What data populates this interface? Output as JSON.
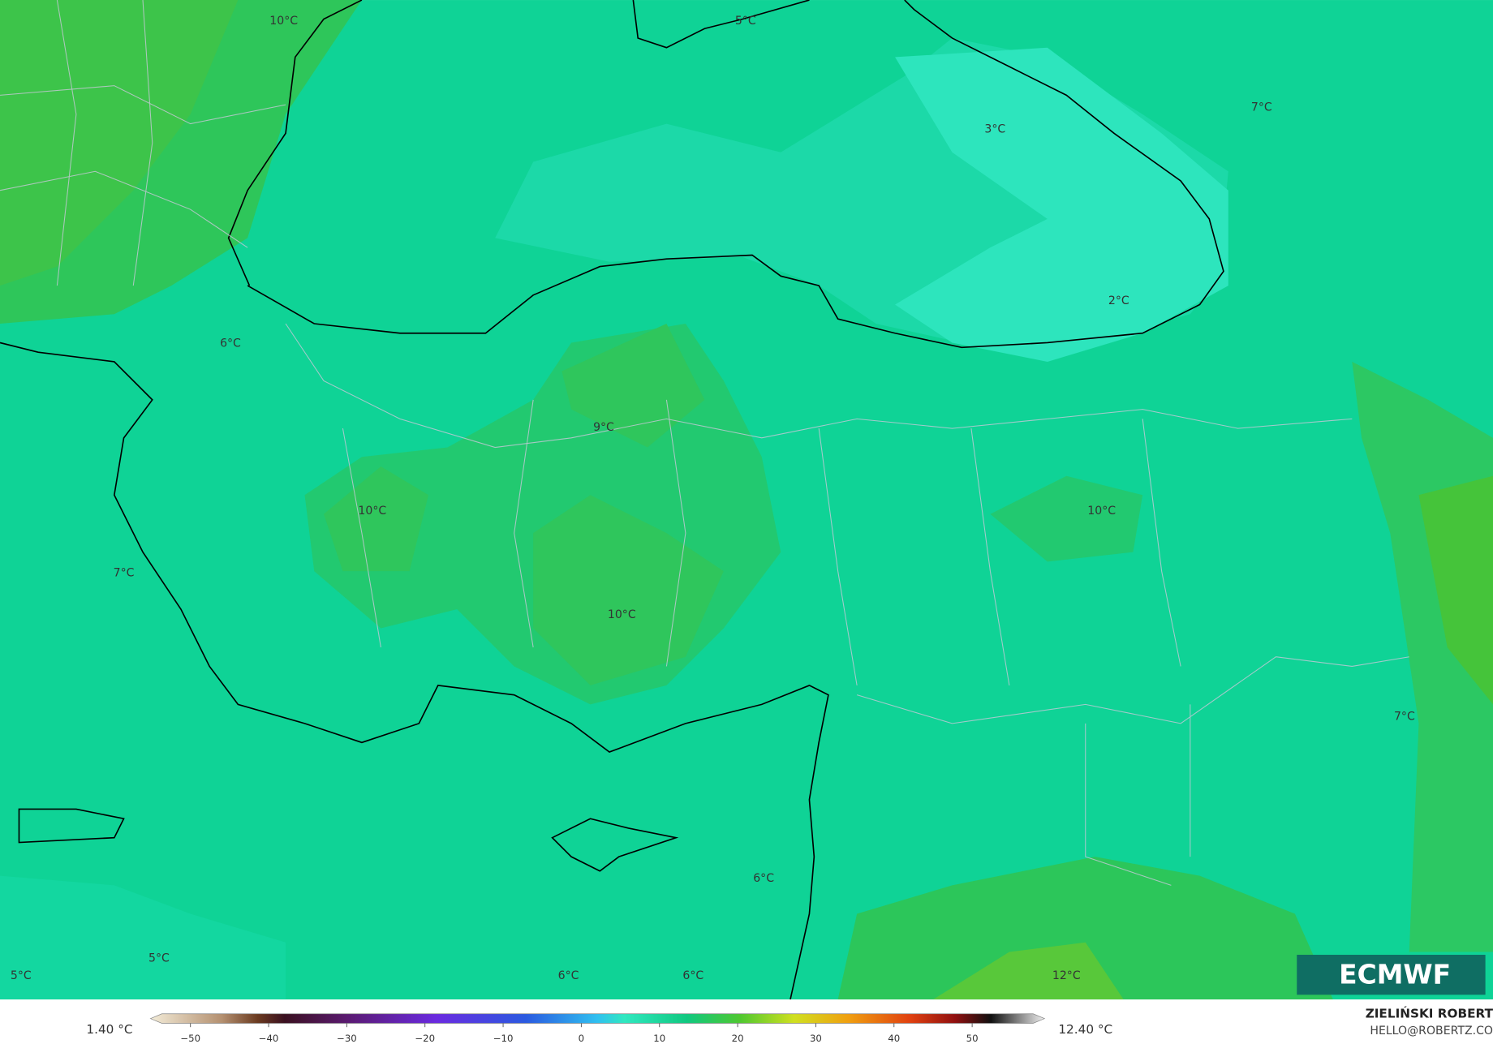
{
  "map_labels": [
    "10°C",
    "5°C",
    "3°C",
    "7°C",
    "2°C",
    "6°C",
    "9°C",
    "10°C",
    "10°C",
    "7°C",
    "10°C",
    "7°C",
    "6°C",
    "5°C",
    "5°C",
    "6°C",
    "6°C",
    "12°C"
  ],
  "colorbar": {
    "min_label": "1.40 °C",
    "max_label": "12.40 °C",
    "ticks": [
      {
        "value": -50,
        "label": "−50"
      },
      {
        "value": -40,
        "label": "−40"
      },
      {
        "value": -30,
        "label": "−30"
      },
      {
        "value": -20,
        "label": "−20"
      },
      {
        "value": -10,
        "label": "−10"
      },
      0,
      10,
      20,
      30,
      40,
      50
    ]
  },
  "logo": "ECMWF",
  "author": "ZIELIŃSKI ROBERT",
  "email": "HELLO@ROBERTZ.CO"
}
